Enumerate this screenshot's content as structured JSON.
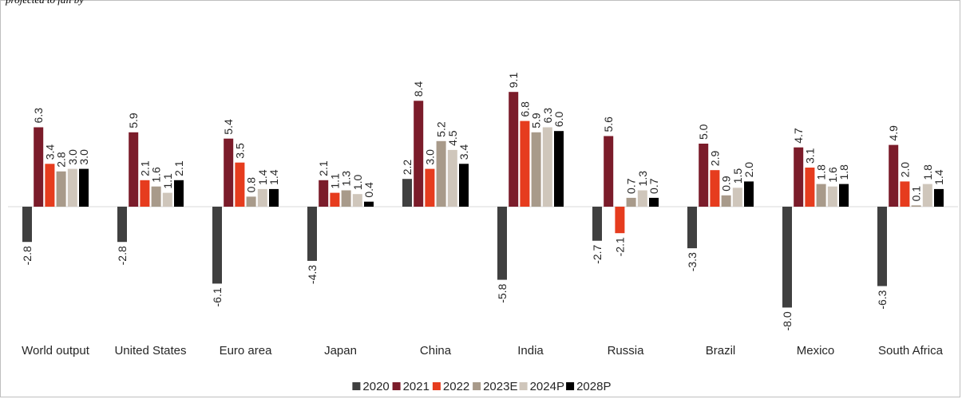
{
  "caption": "projected to fall by",
  "chart_data": {
    "type": "bar",
    "categories": [
      "World output",
      "United States",
      "Euro area",
      "Japan",
      "China",
      "India",
      "Russia",
      "Brazil",
      "Mexico",
      "South Africa"
    ],
    "series": [
      {
        "name": "2020",
        "color": "#404040",
        "values": [
          -2.8,
          -2.8,
          -6.1,
          -4.3,
          2.2,
          -5.8,
          -2.7,
          -3.3,
          -8.0,
          -6.3
        ]
      },
      {
        "name": "2021",
        "color": "#7b1c2a",
        "values": [
          6.3,
          5.9,
          5.4,
          2.1,
          8.4,
          9.1,
          5.6,
          5.0,
          4.7,
          4.9
        ]
      },
      {
        "name": "2022",
        "color": "#e63c1e",
        "values": [
          3.4,
          2.1,
          3.5,
          1.1,
          3.0,
          6.8,
          -2.1,
          2.9,
          3.1,
          2.0
        ]
      },
      {
        "name": "2023E",
        "color": "#a89a8a",
        "values": [
          2.8,
          1.6,
          0.8,
          1.3,
          5.2,
          5.9,
          0.7,
          0.9,
          1.8,
          0.1
        ]
      },
      {
        "name": "2024P",
        "color": "#cfc6bb",
        "values": [
          3.0,
          1.1,
          1.4,
          1.0,
          4.5,
          6.3,
          1.3,
          1.5,
          1.6,
          1.8
        ]
      },
      {
        "name": "2028P",
        "color": "#000000",
        "values": [
          3.0,
          2.1,
          1.4,
          0.4,
          3.4,
          6.0,
          0.7,
          2.0,
          1.8,
          1.4
        ]
      }
    ],
    "value_labels": [
      [
        "-2.8",
        "-2.8",
        "-6.1",
        "-4.3",
        "2.2",
        "-5.8",
        "-2.7",
        "-3.3",
        "-8.0",
        "-6.3"
      ],
      [
        "6.3",
        "5.9",
        "5.4",
        "2.1",
        "8.4",
        "9.1",
        "5.6",
        "5.0",
        "4.7",
        "4.9"
      ],
      [
        "3.4",
        "2.1",
        "3.5",
        "1.1",
        "3.0",
        "6.8",
        "-2.1",
        "2.9",
        "3.1",
        "2.0"
      ],
      [
        "2.8",
        "1.6",
        "0.8",
        "1.3",
        "5.2",
        "5.9",
        "0.7",
        "0.9",
        "1.8",
        "0.1"
      ],
      [
        "3.0",
        "1.1",
        "1.4",
        "1.0",
        "4.5",
        "6.3",
        "1.3",
        "1.5",
        "1.6",
        "1.8"
      ],
      [
        "3.0",
        "2.1",
        "1.4",
        "0.4",
        "3.4",
        "6.0",
        "0.7",
        "2.0",
        "1.8",
        "1.4"
      ]
    ],
    "ylim": [
      -8.0,
      9.1
    ],
    "grid": false,
    "legend_position": "bottom"
  }
}
